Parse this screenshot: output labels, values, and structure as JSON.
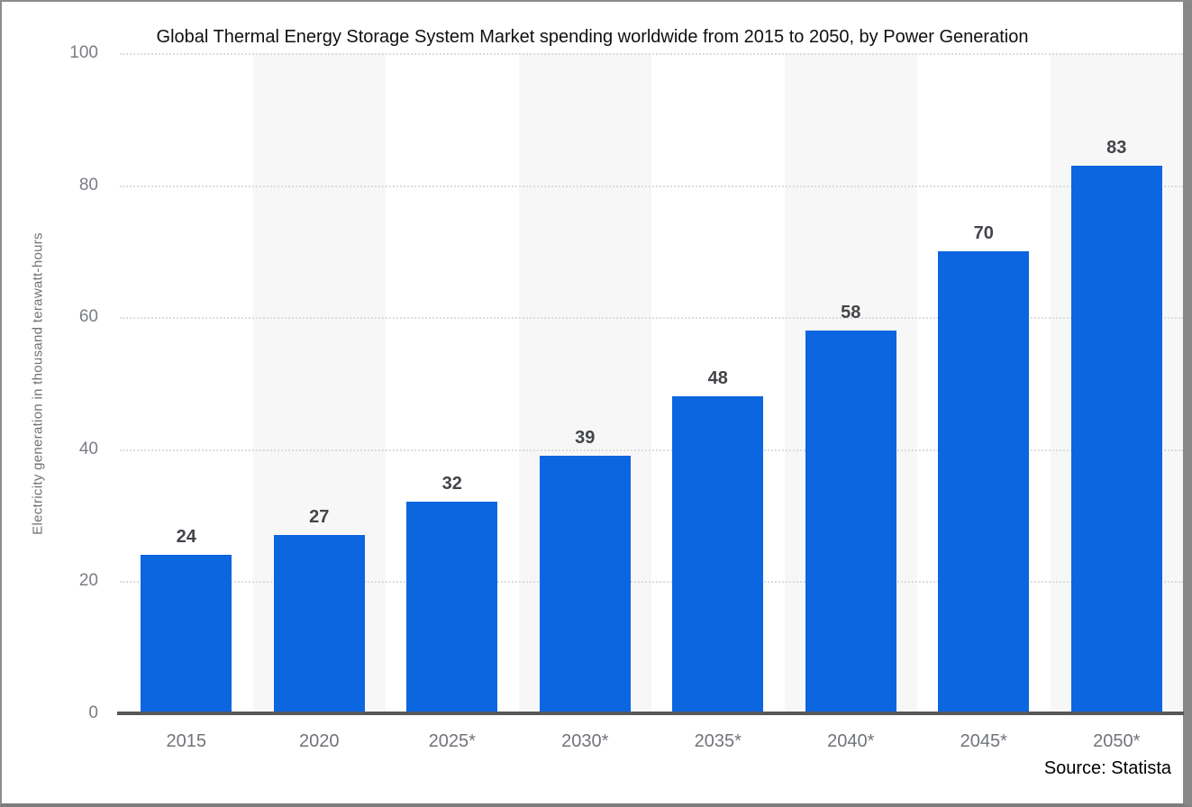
{
  "frame": {
    "border_color": "#8c8c8c",
    "background": "#ffffff"
  },
  "source": {
    "label": "Source: Statista"
  },
  "chart_data": {
    "type": "bar",
    "title": "Global Thermal Energy Storage System Market spending worldwide from 2015 to 2050, by Power Generation",
    "ylabel": "Electricity generation in thousand terawatt-hours",
    "xlabel": "",
    "categories": [
      "2015",
      "2020",
      "2025*",
      "2030*",
      "2035*",
      "2040*",
      "2045*",
      "2050*"
    ],
    "values": [
      24,
      27,
      32,
      39,
      48,
      58,
      70,
      83
    ],
    "value_labels": [
      "24",
      "27",
      "32",
      "39",
      "48",
      "58",
      "70",
      "83"
    ],
    "ylim": [
      0,
      100
    ],
    "yticks": [
      0,
      20,
      40,
      60,
      80,
      100
    ],
    "grid": "horizontal-dotted",
    "legend": "none",
    "stripes": "alternating light gray bands behind even categories",
    "colors": {
      "bar": "#0b66e0",
      "stripe": "#f7f7f7",
      "gridline": "#dcdcdc",
      "axis_line": "#58585a",
      "y_tick_label": "#797d84",
      "x_tick_label": "#70747a",
      "value_label": "#424549",
      "title": "#101010",
      "source": "#000000"
    }
  }
}
